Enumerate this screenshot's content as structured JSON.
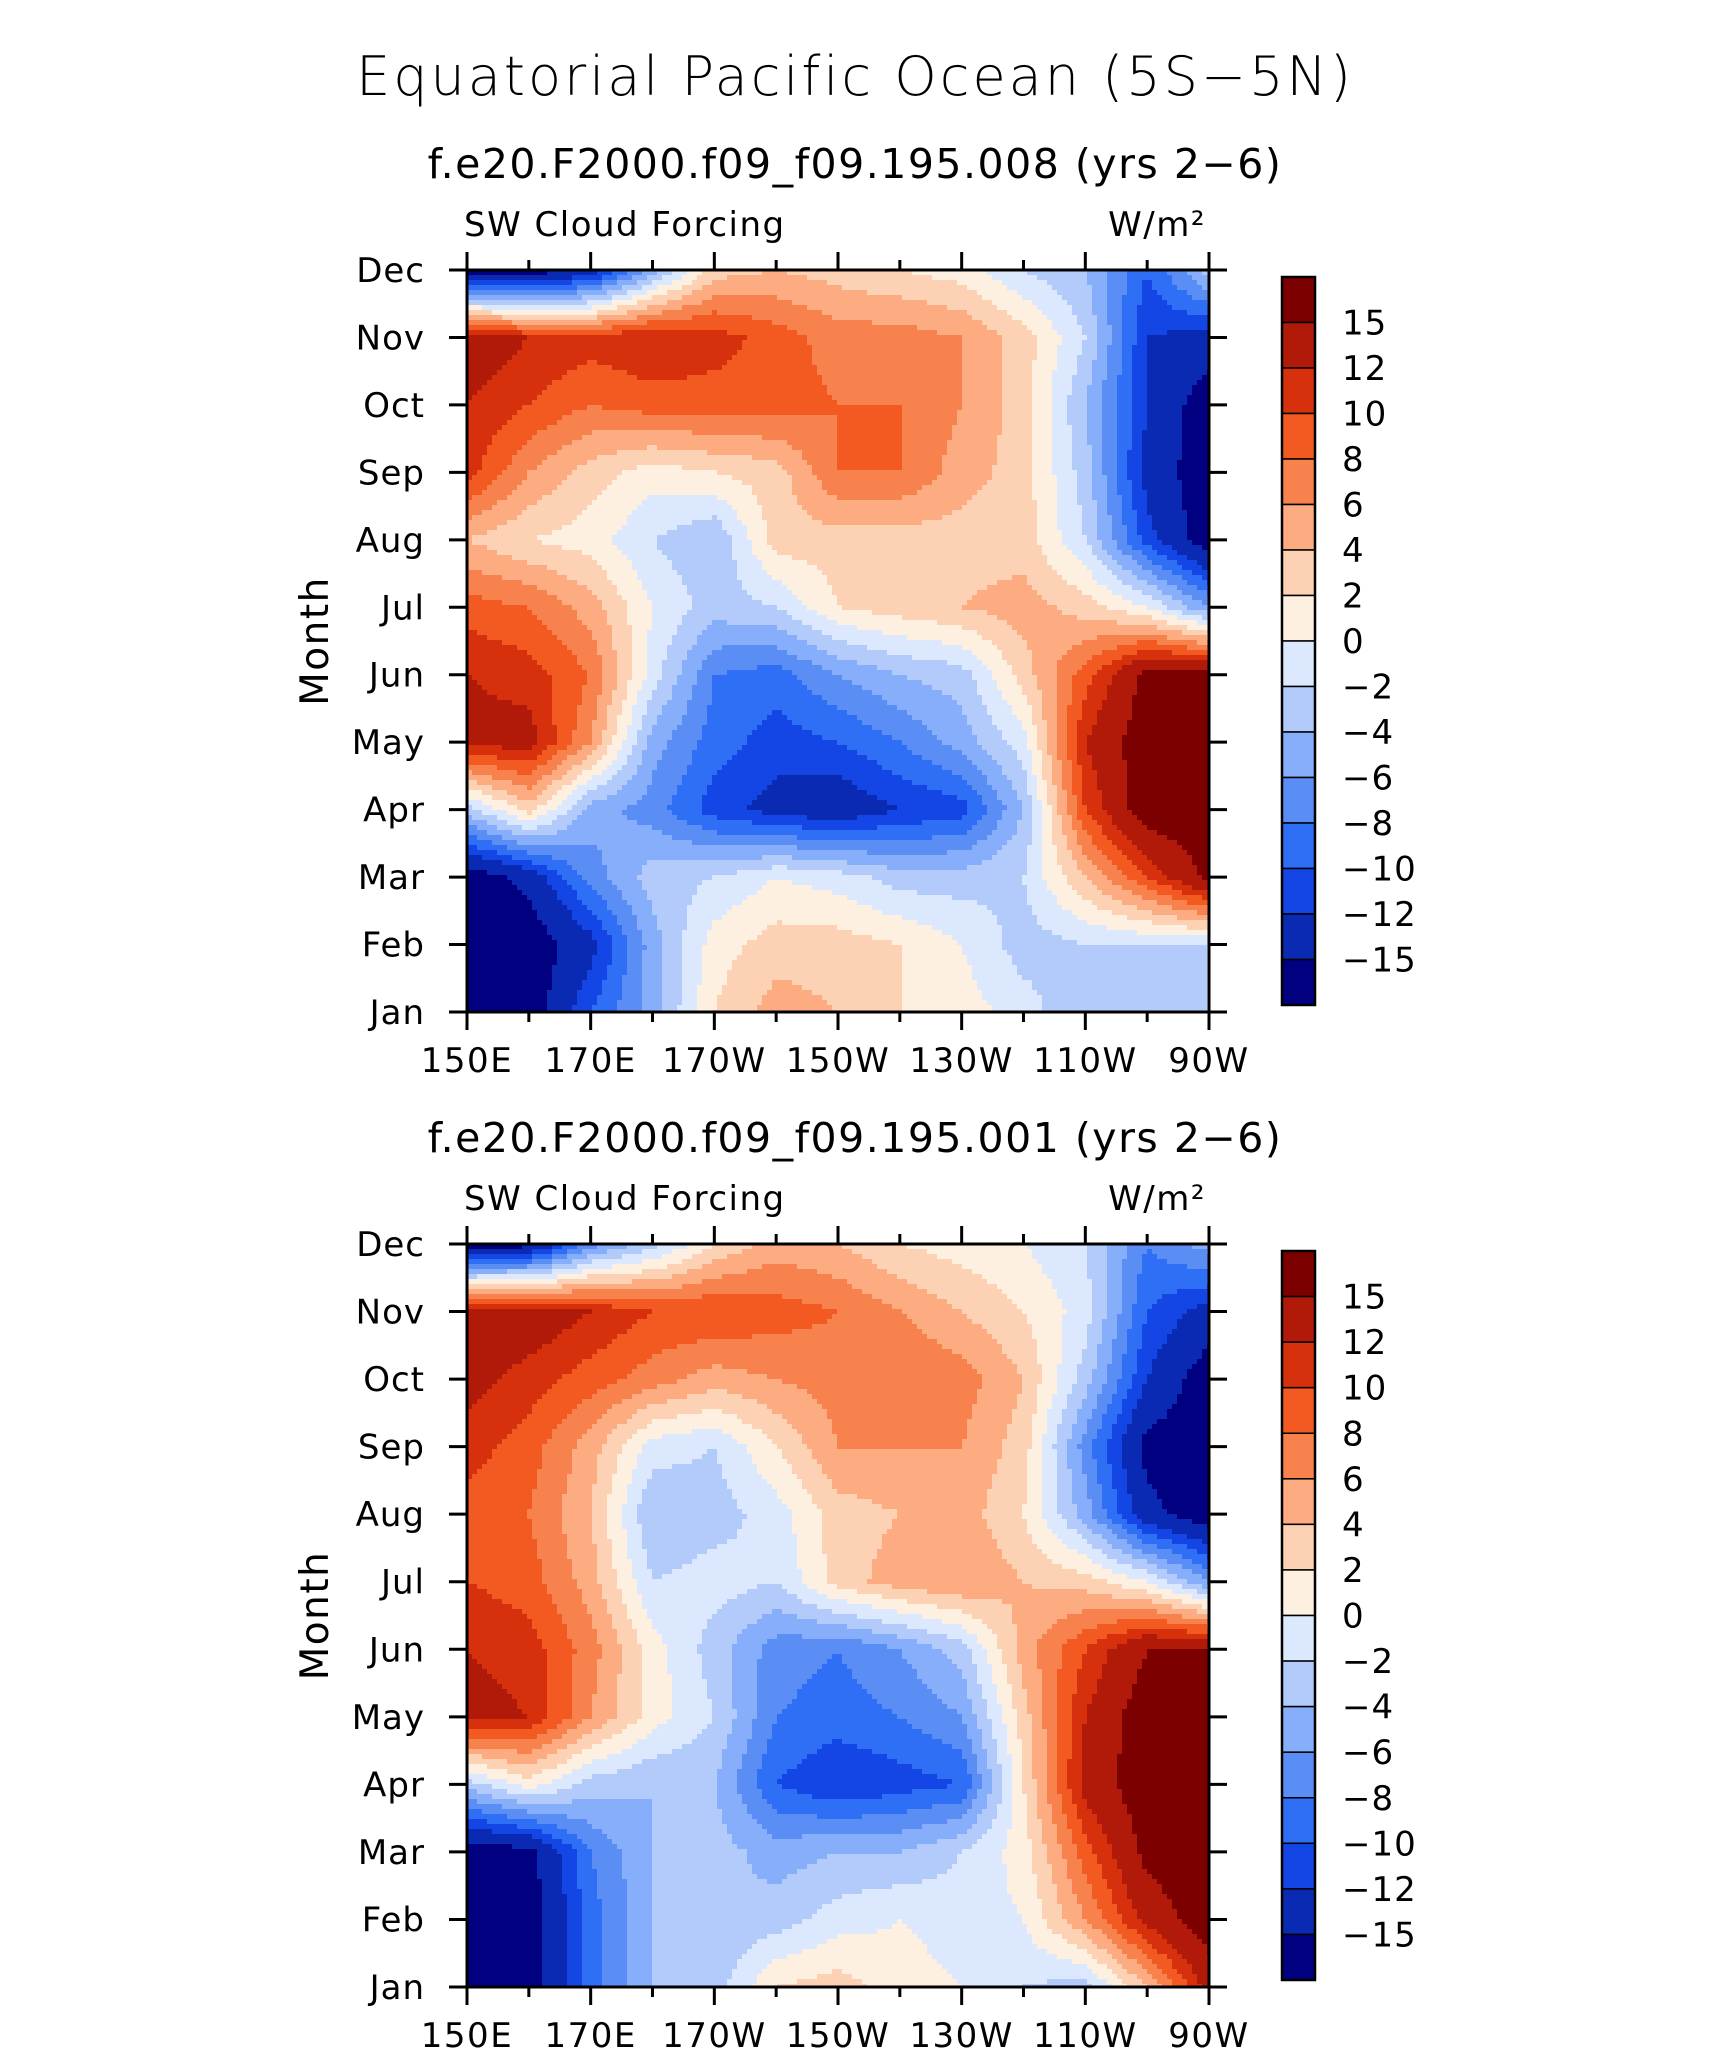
{
  "main_title": "Equatorial Pacific Ocean (5S−5N)",
  "colors": [
    "#000080",
    "#0a2ab4",
    "#1446e6",
    "#2f6ff5",
    "#5a8ef5",
    "#86aefa",
    "#b2cbfb",
    "#dce8fd",
    "#fef0e0",
    "#fdd2b4",
    "#fcac80",
    "#f7824e",
    "#f25a22",
    "#d6300c",
    "#b11a08",
    "#7d0000"
  ],
  "chart_data": [
    {
      "type": "heatmap",
      "title": "f.e20.F2000.f09_f09.195.008 (yrs 2−6)",
      "left_label": "SW Cloud Forcing",
      "right_label": "W/m²",
      "ylabel": "Month",
      "xlabel": "",
      "x_tick_labels": [
        "150E",
        "170E",
        "170W",
        "150W",
        "130W",
        "110W",
        "90W"
      ],
      "x_tick_lon": [
        150,
        170,
        190,
        210,
        230,
        250,
        270
      ],
      "x_range": [
        150,
        270
      ],
      "y_tick_labels": [
        "Jan",
        "Feb",
        "Mar",
        "Apr",
        "May",
        "Jun",
        "Jul",
        "Aug",
        "Sep",
        "Oct",
        "Nov",
        "Dec"
      ],
      "colorbar_levels": [
        -15,
        -12,
        -10,
        -8,
        -6,
        -4,
        -2,
        0,
        2,
        4,
        6,
        8,
        10,
        12,
        15
      ],
      "colorbar_labels": [
        "15",
        "12",
        "10",
        "8",
        "6",
        "4",
        "2",
        "0",
        "−2",
        "−4",
        "−6",
        "−8",
        "−10",
        "−12",
        "−15"
      ],
      "grid_lon": [
        150,
        160,
        170,
        180,
        190,
        200,
        210,
        220,
        230,
        240,
        250,
        260,
        270
      ],
      "grid": [
        [
          -17,
          -17,
          -10,
          -5,
          2,
          5,
          4,
          2,
          1,
          -1,
          -4,
          -3,
          -2
        ],
        [
          -17,
          -17,
          -13,
          -5,
          1,
          3,
          3,
          2,
          0,
          -3,
          -2,
          -2,
          -2
        ],
        [
          -17,
          -14,
          -7,
          -3,
          -2,
          0,
          -1,
          -3,
          -3,
          -2,
          4,
          10,
          16
        ],
        [
          -3,
          3,
          -5,
          -7,
          -11,
          -13,
          -14,
          -12,
          -11,
          -4,
          10,
          17,
          17
        ],
        [
          13,
          13,
          6,
          -5,
          -9,
          -11,
          -10,
          -8,
          -5,
          -1,
          12,
          17,
          17
        ],
        [
          12,
          11,
          8,
          -1,
          -8,
          -9,
          -6,
          -4,
          -3,
          3,
          9,
          16,
          16
        ],
        [
          9,
          8,
          5,
          0,
          -3,
          -2,
          2,
          3,
          4,
          5,
          3,
          0,
          -6
        ],
        [
          4,
          2,
          1,
          -2,
          -4,
          3,
          3,
          3,
          3,
          3,
          -2,
          -11,
          -17
        ],
        [
          11,
          6,
          3,
          1,
          2,
          3,
          8,
          8,
          5,
          3,
          -3,
          -13,
          -17
        ],
        [
          12,
          10,
          8,
          9,
          9,
          9,
          8,
          8,
          6,
          3,
          -4,
          -12,
          -17
        ],
        [
          14,
          12,
          11,
          12,
          11,
          9,
          7,
          7,
          6,
          3,
          -2,
          -12,
          -13
        ],
        [
          -17,
          -17,
          -14,
          -5,
          3,
          4,
          3,
          2,
          1,
          -2,
          -4,
          -10,
          -3
        ]
      ]
    },
    {
      "type": "heatmap",
      "title": "f.e20.F2000.f09_f09.195.001 (yrs 2−6)",
      "left_label": "SW Cloud Forcing",
      "right_label": "W/m²",
      "ylabel": "Month",
      "xlabel": "",
      "x_tick_labels": [
        "150E",
        "170E",
        "170W",
        "150W",
        "130W",
        "110W",
        "90W"
      ],
      "x_tick_lon": [
        150,
        170,
        190,
        210,
        230,
        250,
        270
      ],
      "x_range": [
        150,
        270
      ],
      "y_tick_labels": [
        "Jan",
        "Feb",
        "Mar",
        "Apr",
        "May",
        "Jun",
        "Jul",
        "Aug",
        "Sep",
        "Oct",
        "Nov",
        "Dec"
      ],
      "colorbar_levels": [
        -15,
        -12,
        -10,
        -8,
        -6,
        -4,
        -2,
        0,
        2,
        4,
        6,
        8,
        10,
        12,
        15
      ],
      "colorbar_labels": [
        "15",
        "12",
        "10",
        "8",
        "6",
        "4",
        "2",
        "0",
        "−2",
        "−4",
        "−6",
        "−8",
        "−10",
        "−12",
        "−15"
      ],
      "grid_lon": [
        150,
        160,
        170,
        180,
        190,
        200,
        210,
        220,
        230,
        240,
        250,
        260,
        270
      ],
      "grid": [
        [
          -17,
          -17,
          -9,
          -4,
          -3,
          2,
          3,
          1,
          0,
          -2,
          -3,
          4,
          13
        ],
        [
          -17,
          -17,
          -9,
          -4,
          -4,
          -3,
          -1,
          0,
          -1,
          0,
          6,
          13,
          17
        ],
        [
          -17,
          -16,
          -8,
          -4,
          -3,
          -5,
          -4,
          -4,
          -2,
          1,
          9,
          16,
          17
        ],
        [
          -3,
          1,
          -3,
          -4,
          -4,
          -10,
          -12,
          -11,
          -10,
          2,
          13,
          17,
          17
        ],
        [
          13,
          12,
          6,
          1,
          -2,
          -8,
          -9,
          -8,
          -6,
          3,
          12,
          17,
          17
        ],
        [
          12,
          11,
          7,
          1,
          -3,
          -7,
          -8,
          -6,
          -3,
          5,
          10,
          15,
          15
        ],
        [
          10,
          9,
          5,
          -2,
          -1,
          -2,
          3,
          5,
          6,
          4,
          3,
          0,
          -6
        ],
        [
          9,
          8,
          4,
          -4,
          -3,
          -1,
          3,
          4,
          5,
          2,
          -5,
          -14,
          -17
        ],
        [
          11,
          9,
          5,
          -1,
          -2,
          2,
          6,
          6,
          6,
          3,
          -7,
          -16,
          -17
        ],
        [
          13,
          11,
          9,
          7,
          5,
          6,
          7,
          8,
          7,
          4,
          -3,
          -12,
          -17
        ],
        [
          14,
          14,
          12,
          10,
          10,
          9,
          8,
          6,
          4,
          2,
          -1,
          -10,
          -13
        ],
        [
          -17,
          -16,
          -7,
          -3,
          2,
          5,
          4,
          2,
          1,
          0,
          -2,
          -8,
          -5
        ]
      ]
    }
  ]
}
